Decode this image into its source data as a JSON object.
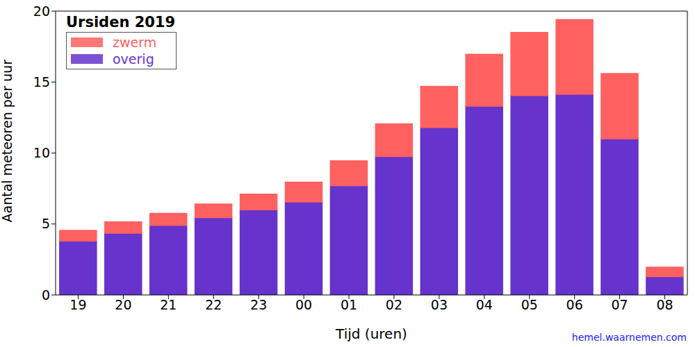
{
  "chart_data": {
    "type": "bar",
    "title": "Ursiden 2019",
    "x_label": "Tijd (uren)",
    "y_label": "Aantal meteoren per uur",
    "source": "hemel.waarnemen.com",
    "categories": [
      "19",
      "20",
      "21",
      "22",
      "23",
      "00",
      "01",
      "02",
      "03",
      "04",
      "05",
      "06",
      "07",
      "08"
    ],
    "series": [
      {
        "name": "zwerm",
        "color": "#ff6060",
        "values": [
          0.75,
          0.8,
          0.85,
          0.95,
          1.1,
          1.4,
          1.75,
          2.3,
          2.9,
          3.65,
          4.45,
          5.25,
          4.6,
          0.65
        ]
      },
      {
        "name": "overig",
        "color": "#6633cc",
        "values": [
          3.8,
          4.35,
          4.9,
          5.45,
          6.0,
          6.55,
          7.7,
          9.75,
          11.8,
          13.3,
          14.05,
          14.15,
          11.0,
          1.3
        ]
      }
    ],
    "stacked": true,
    "legend": "upper left",
    "ylim": [
      0,
      20
    ],
    "yticks": [
      0,
      5,
      10,
      15,
      20
    ],
    "grid": false
  }
}
